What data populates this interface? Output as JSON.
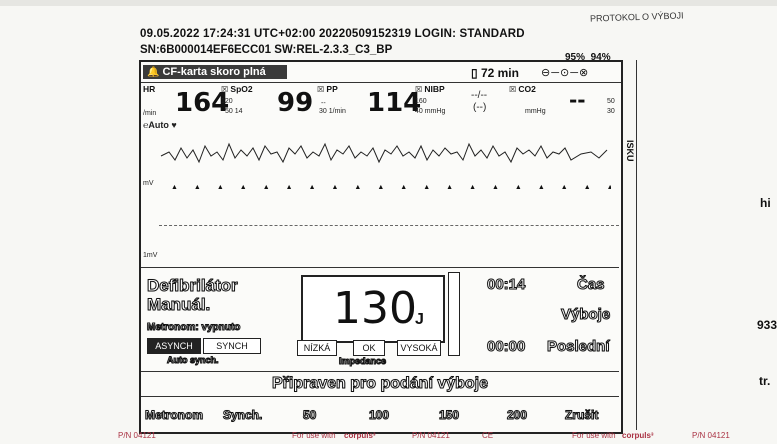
{
  "colors": {
    "screen_border": "#222222",
    "alarm_bg": "#3a3a3a",
    "footer": "#aa3344"
  },
  "header": {
    "line1": "09.05.2022  17:24:31  UTC+02:00    20220509152319    LOGIN: STANDARD",
    "line2": "SN:6B000014EF6ECC01  SW:REL-2.3.3_C3_BP",
    "protokol": "PROTOKOL O VÝBOJI"
  },
  "battery": {
    "b1": "95%",
    "b2": "94%"
  },
  "status": {
    "alarm": "CF-karta skoro plná",
    "timer": "72 min",
    "icons": "⊖─⊙─⊗"
  },
  "vitals": {
    "hr_label": "HR",
    "hr_value": "164",
    "hr_unit": "/min",
    "spo2_label": "SpO2",
    "spo2_value": "99",
    "spo2_hi": "120",
    "spo2_lo": "50  14",
    "pp_label": "PP",
    "pp_value": "114",
    "pp_hi": "--",
    "pp_lo": "30  1/min",
    "nibp_label": "NIBP",
    "nibp_value": "--/--",
    "nibp_sub": "(--)",
    "nibp_hi": "160",
    "nibp_lo": "40  mmHg",
    "co2_label": "CO2",
    "co2_value": "--",
    "co2_unit": "mmHg",
    "co2_hi": "50",
    "co2_lo": "30",
    "lead": "Auto",
    "mv1": "mV",
    "mv2": "1mV"
  },
  "defib": {
    "title1": "Defibrilátor",
    "title2": "Manuál.",
    "metronom": "Metronom: vypnuto",
    "async_btn": "ASYNCH",
    "sync_btn": "SYNCH",
    "auto_sync": "Auto synch.",
    "energy": "130",
    "energy_unit": "J",
    "imp_low": "NÍZKÁ",
    "imp_ok": "OK",
    "imp_high": "VYSOKÁ",
    "impedance_label": "Impedance",
    "time_val": "00:14",
    "time_lbl": "Čas",
    "shocks_lbl": "Výboje",
    "last_val": "00:00",
    "last_lbl": "Poslední",
    "ready": "Připraven pro podání výboje"
  },
  "softkeys": [
    "Metronom",
    "Synch.",
    "50",
    "100",
    "150",
    "200",
    "Zrušit"
  ],
  "side": {
    "tape": "ISKU",
    "right1": "hi",
    "right2": "933",
    "right3": "tr."
  },
  "footer": {
    "f1": "P/N 04121",
    "f2": "For use with",
    "f3": "corpuls³",
    "f4": "P/N 04121",
    "f5": "CE",
    "f6": "For use with",
    "f7": "corpuls³",
    "f8": "P/N 04121"
  }
}
